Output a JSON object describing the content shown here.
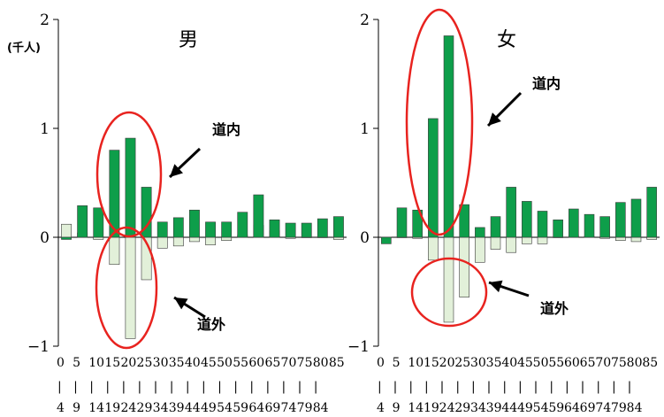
{
  "chart_data": [
    {
      "type": "bar",
      "title": "男",
      "ylabel": "(千人)",
      "ylim": [
        -1,
        2
      ],
      "yticks": [
        "2",
        "1",
        "0",
        "−1"
      ],
      "age_group_starts": [
        "0",
        "5",
        "10",
        "15",
        "20",
        "25",
        "30",
        "35",
        "40",
        "45",
        "50",
        "55",
        "60",
        "65",
        "70",
        "75",
        "80",
        "85"
      ],
      "age_group_ends": [
        "4",
        "9",
        "14",
        "19",
        "24",
        "29",
        "34",
        "39",
        "44",
        "49",
        "54",
        "59",
        "64",
        "69",
        "74",
        "79",
        "84"
      ],
      "series": [
        {
          "name": "道内",
          "color": "#0e9e4a",
          "values": [
            -0.02,
            0.29,
            0.27,
            0.8,
            0.91,
            0.46,
            0.14,
            0.18,
            0.25,
            0.14,
            0.14,
            0.23,
            0.39,
            0.16,
            0.13,
            0.13,
            0.17,
            0.19
          ]
        },
        {
          "name": "道外",
          "color": "#e2f0d9",
          "values": [
            0.12,
            0.04,
            -0.02,
            -0.25,
            -0.93,
            -0.39,
            -0.1,
            -0.08,
            -0.04,
            -0.07,
            -0.03,
            0.02,
            0.11,
            0.06,
            -0.01,
            0.0,
            0.0,
            -0.02
          ]
        }
      ],
      "annotations": [
        "道内",
        "道外"
      ]
    },
    {
      "type": "bar",
      "title": "女",
      "ylim": [
        -1,
        2
      ],
      "yticks": [
        "2",
        "1",
        "0",
        "−1"
      ],
      "age_group_starts": [
        "0",
        "5",
        "10",
        "15",
        "20",
        "25",
        "30",
        "35",
        "40",
        "45",
        "50",
        "55",
        "60",
        "65",
        "70",
        "75",
        "80",
        "85"
      ],
      "age_group_ends": [
        "4",
        "9",
        "14",
        "19",
        "24",
        "29",
        "34",
        "39",
        "44",
        "49",
        "54",
        "59",
        "64",
        "69",
        "74",
        "79",
        "84"
      ],
      "series": [
        {
          "name": "道内",
          "color": "#0e9e4a",
          "values": [
            -0.06,
            0.27,
            0.25,
            1.09,
            1.85,
            0.3,
            0.09,
            0.19,
            0.46,
            0.33,
            0.24,
            0.16,
            0.26,
            0.21,
            0.19,
            0.32,
            0.35,
            0.46
          ]
        },
        {
          "name": "道外",
          "color": "#e2f0d9",
          "values": [
            0.0,
            0.0,
            -0.01,
            -0.21,
            -0.78,
            -0.55,
            -0.23,
            -0.11,
            -0.14,
            -0.06,
            -0.06,
            0.0,
            0.02,
            0.01,
            -0.01,
            -0.03,
            -0.04,
            -0.02
          ]
        }
      ],
      "annotations": [
        "道内",
        "道外"
      ]
    }
  ]
}
